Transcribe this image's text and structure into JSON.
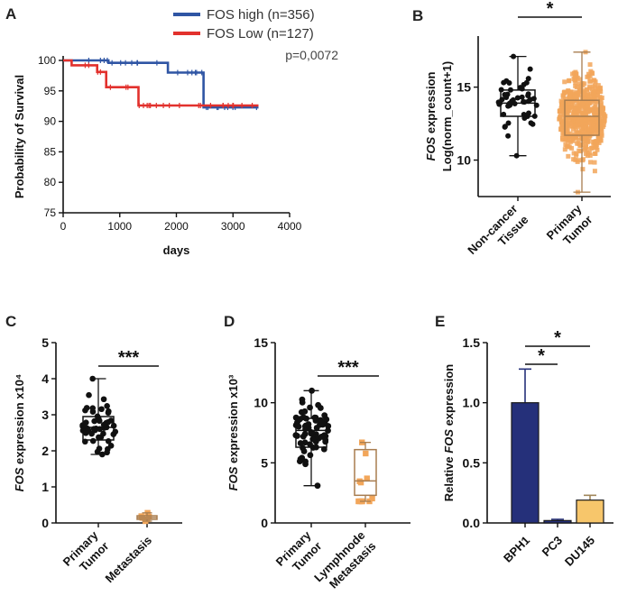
{
  "colors": {
    "blue": "#2f55a4",
    "red": "#e2312d",
    "orange": "#f2a65a",
    "navy": "#25307a",
    "yellow": "#f7c66b",
    "tan": "#c8a57a"
  },
  "chart_data": [
    {
      "panel": "A",
      "type": "line",
      "title": "",
      "xlabel": "days",
      "ylabel": "Probability of Survival",
      "xlim": [
        0,
        4000
      ],
      "ylim": [
        75,
        100
      ],
      "xticks": [
        "0",
        "1000",
        "2000",
        "3000",
        "4000"
      ],
      "yticks": [
        "75",
        "80",
        "85",
        "90",
        "95",
        "100"
      ],
      "series": [
        {
          "name": "FOS high (n=356)",
          "color": "#2f55a4",
          "steps": [
            [
              0,
              100
            ],
            [
              800,
              100
            ],
            [
              800,
              99.6
            ],
            [
              1850,
              99.6
            ],
            [
              1850,
              98
            ],
            [
              2480,
              98
            ],
            [
              2480,
              92.3
            ],
            [
              3450,
              92.3
            ]
          ]
        },
        {
          "name": "FOS Low (n=127)",
          "color": "#e2312d",
          "steps": [
            [
              0,
              100
            ],
            [
              150,
              100
            ],
            [
              150,
              99.2
            ],
            [
              600,
              99.2
            ],
            [
              600,
              98.1
            ],
            [
              760,
              98.1
            ],
            [
              760,
              95.6
            ],
            [
              1330,
              95.6
            ],
            [
              1330,
              92.6
            ],
            [
              3450,
              92.6
            ]
          ]
        }
      ],
      "annotation": "p=0,0072"
    },
    {
      "panel": "B",
      "type": "box",
      "ylabel_italic": "FOS",
      "ylabel_rest": " expression",
      "ylabel2": "Log(norm_count+1)",
      "ylim": [
        7.5,
        18.5
      ],
      "yticks": [
        10,
        15
      ],
      "categories": [
        "Non-cancer Tissue",
        "Primary Tumor"
      ],
      "category_lines": [
        [
          "Non-cancer",
          "Tissue"
        ],
        [
          "Primary",
          "Tumor"
        ]
      ],
      "boxes": [
        {
          "min": 10.3,
          "q1": 13.0,
          "median": 13.9,
          "q3": 14.8,
          "max": 17.1,
          "n_points": 50,
          "color": "#111111"
        },
        {
          "min": 7.8,
          "q1": 11.7,
          "median": 13.0,
          "q3": 14.1,
          "max": 17.4,
          "n_points": 600,
          "color": "#f2a65a"
        }
      ],
      "significance": "*"
    },
    {
      "panel": "C",
      "type": "box",
      "ylabel_italic": "FOS",
      "ylabel_rest": " expression x10⁴",
      "ylim": [
        0,
        5
      ],
      "yticks": [
        0,
        1,
        2,
        3,
        4,
        5
      ],
      "categories": [
        "Primary Tumor",
        "Metastasis"
      ],
      "category_lines": [
        [
          "Primary",
          "Tumor"
        ],
        [
          "Metastasis"
        ]
      ],
      "boxes": [
        {
          "min": 1.9,
          "q1": 2.3,
          "median": 2.65,
          "q3": 2.95,
          "max": 4.0,
          "n_points": 50,
          "color": "#111111"
        },
        {
          "min": 0.05,
          "q1": 0.1,
          "median": 0.15,
          "q3": 0.2,
          "max": 0.28,
          "n_points": 6,
          "color": "#f2a65a"
        }
      ],
      "significance": "***"
    },
    {
      "panel": "D",
      "type": "box",
      "ylabel_italic": "FOS",
      "ylabel_rest": " expression x10³",
      "ylim": [
        0,
        15
      ],
      "yticks": [
        0,
        5,
        10,
        15
      ],
      "categories": [
        "Primary Tumor",
        "Lymphnode Metastasis"
      ],
      "category_lines": [
        [
          "Primary",
          "Tumor"
        ],
        [
          "Lymphnode",
          "Metastasis"
        ]
      ],
      "boxes": [
        {
          "min": 3.1,
          "q1": 6.3,
          "median": 7.7,
          "q3": 8.7,
          "max": 11.0,
          "n_points": 70,
          "color": "#111111"
        },
        {
          "min": 1.8,
          "q1": 2.3,
          "median": 3.5,
          "q3": 6.1,
          "max": 6.7,
          "n_points": 11,
          "color": "#f2a65a"
        }
      ],
      "significance": "***"
    },
    {
      "panel": "E",
      "type": "bar",
      "ylabel_pre": "Relative ",
      "ylabel_italic": "FOS",
      "ylabel_rest": " expression",
      "ylim": [
        0,
        1.5
      ],
      "yticks": [
        "0.0",
        "0.5",
        "1.0",
        "1.5"
      ],
      "categories": [
        "BPH1",
        "PC3",
        "DU145"
      ],
      "values": [
        1.0,
        0.02,
        0.19
      ],
      "errors": [
        0.28,
        0.01,
        0.04
      ],
      "colors": [
        "#25307a",
        "#25307a",
        "#f7c66b"
      ],
      "significance": [
        {
          "from": "BPH1",
          "to": "PC3",
          "label": "*"
        },
        {
          "from": "BPH1",
          "to": "DU145",
          "label": "*"
        }
      ]
    }
  ]
}
